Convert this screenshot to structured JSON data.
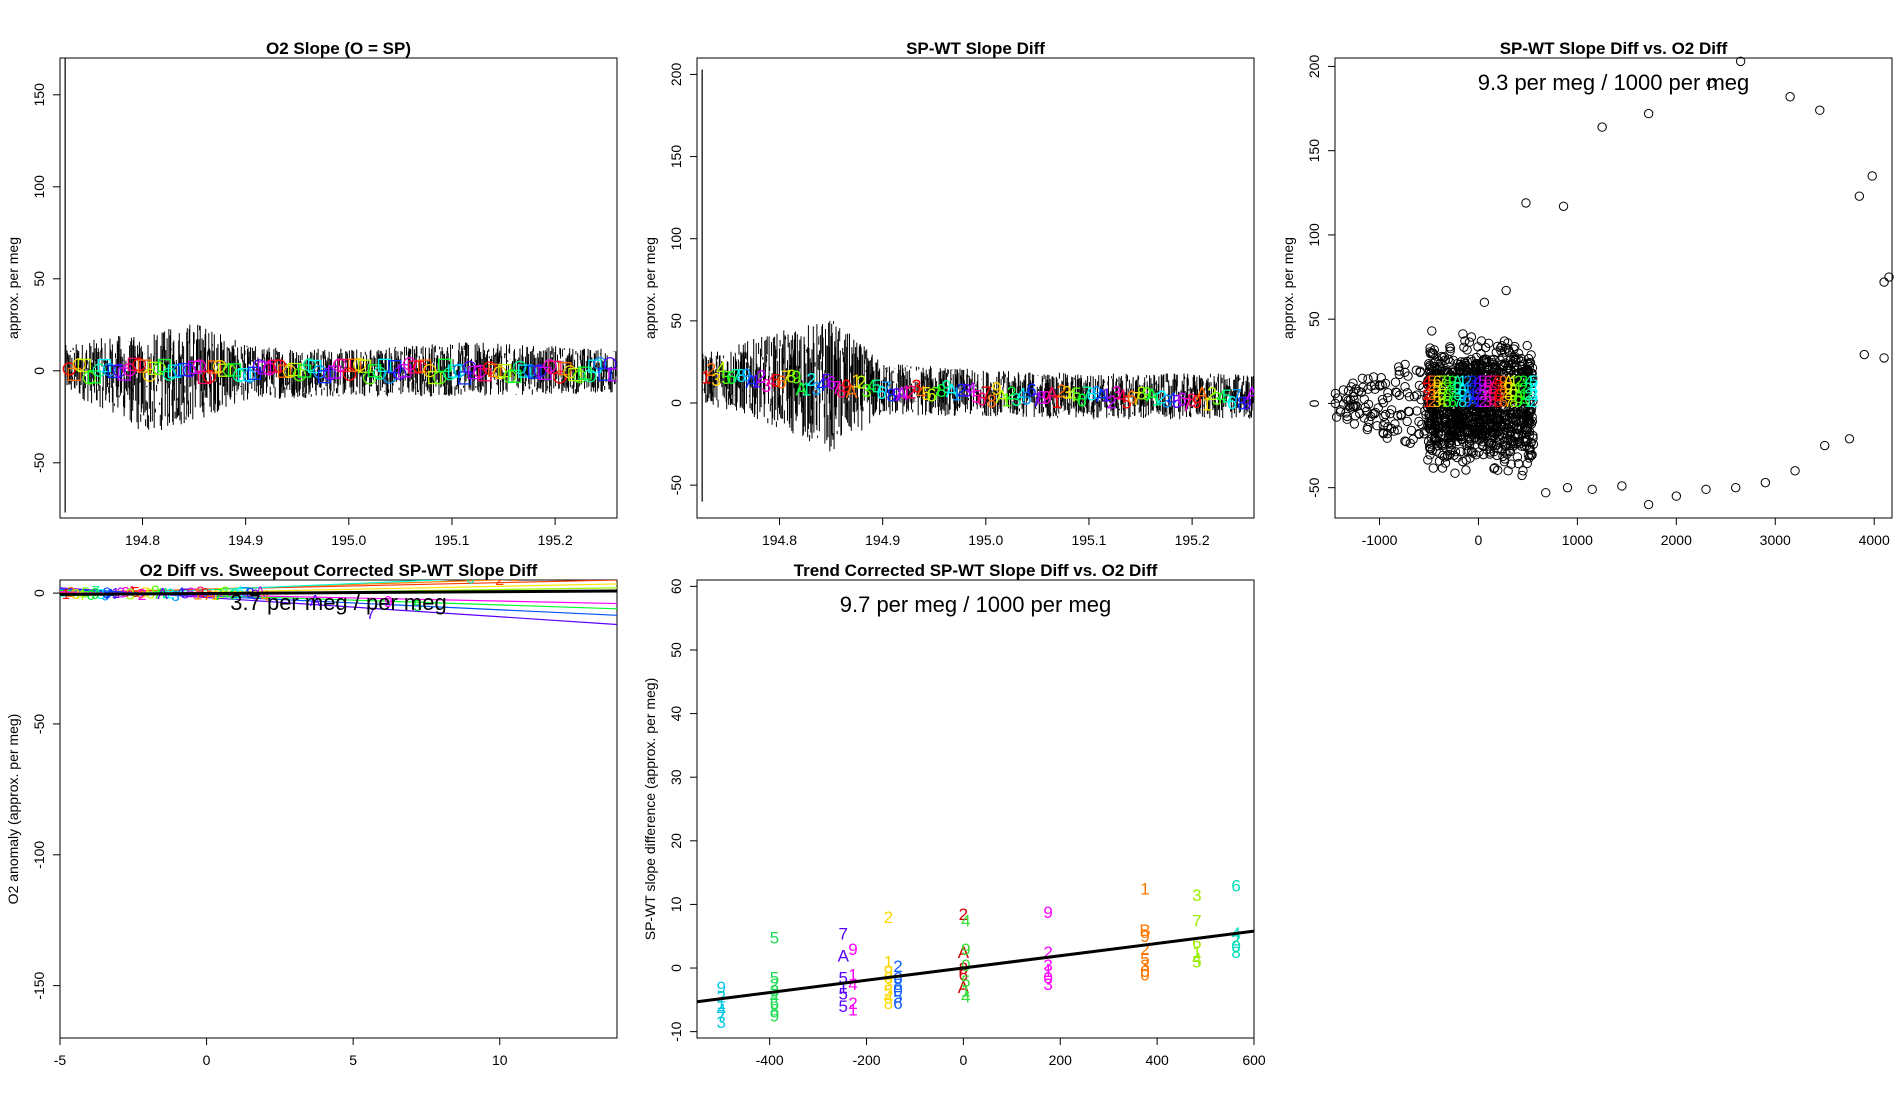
{
  "chart_data": [
    {
      "type": "line",
      "title": "O2 Slope (O = SP)",
      "ylabel": "approx. per meg",
      "xlabel": "",
      "xlim": [
        194.72,
        195.26
      ],
      "ylim": [
        -80,
        170
      ],
      "xticks": [
        194.8,
        194.9,
        195.0,
        195.1,
        195.2
      ],
      "xtick_labels": [
        "194.8",
        "194.9",
        "195.0",
        "195.1",
        "195.2"
      ],
      "yticks": [
        -50,
        0,
        50,
        100,
        150
      ],
      "ytick_labels": [
        "-50",
        "0",
        "50",
        "100",
        "150"
      ],
      "spike": {
        "x": 194.725,
        "ymin": -77,
        "ymax": 172
      },
      "noise_envelope": [
        {
          "x": 194.725,
          "lo": -12,
          "hi": 14
        },
        {
          "x": 194.78,
          "lo": -25,
          "hi": 20
        },
        {
          "x": 194.8,
          "lo": -35,
          "hi": 18
        },
        {
          "x": 194.85,
          "lo": -28,
          "hi": 28
        },
        {
          "x": 194.9,
          "lo": -16,
          "hi": 14
        },
        {
          "x": 195.0,
          "lo": -14,
          "hi": 12
        },
        {
          "x": 195.1,
          "lo": -14,
          "hi": 16
        },
        {
          "x": 195.26,
          "lo": -12,
          "hi": 12
        }
      ],
      "markers": "colored circles (O) and squares (SP) along y = 0"
    },
    {
      "type": "line",
      "title": "SP-WT Slope Diff",
      "ylabel": "approx. per meg",
      "xlabel": "",
      "xlim": [
        194.72,
        195.26
      ],
      "ylim": [
        -70,
        210
      ],
      "xticks": [
        194.8,
        194.9,
        195.0,
        195.1,
        195.2
      ],
      "xtick_labels": [
        "194.8",
        "194.9",
        "195.0",
        "195.1",
        "195.2"
      ],
      "yticks": [
        -50,
        0,
        50,
        100,
        150,
        200
      ],
      "ytick_labels": [
        "-50",
        "0",
        "50",
        "100",
        "150",
        "200"
      ],
      "spike": {
        "x": 194.725,
        "ymin": -60,
        "ymax": 203
      },
      "noise_envelope": [
        {
          "x": 194.725,
          "lo": 0,
          "hi": 30
        },
        {
          "x": 194.78,
          "lo": -10,
          "hi": 40
        },
        {
          "x": 194.85,
          "lo": -30,
          "hi": 52
        },
        {
          "x": 194.9,
          "lo": -8,
          "hi": 25
        },
        {
          "x": 195.0,
          "lo": -8,
          "hi": 20
        },
        {
          "x": 195.1,
          "lo": -10,
          "hi": 18
        },
        {
          "x": 195.26,
          "lo": -10,
          "hi": 18
        }
      ],
      "trend": [
        {
          "x": 194.725,
          "y": 18
        },
        {
          "x": 194.85,
          "y": 10
        },
        {
          "x": 195.0,
          "y": 5
        },
        {
          "x": 195.26,
          "y": 2
        }
      ],
      "marker_labels": [
        "1",
        "2",
        "3",
        "4",
        "5",
        "6",
        "7",
        "8",
        "9",
        "A"
      ]
    },
    {
      "type": "scatter",
      "title": "SP-WT Slope Diff vs. O2 Diff",
      "ylabel": "approx. per meg",
      "xlabel": "",
      "annotation": "9.3 per meg / 1000 per meg",
      "xlim": [
        -1450,
        4180
      ],
      "ylim": [
        -68,
        205
      ],
      "xticks": [
        -1000,
        0,
        1000,
        2000,
        3000,
        4000
      ],
      "xtick_labels": [
        "-1000",
        "0",
        "1000",
        "2000",
        "3000",
        "4000"
      ],
      "yticks": [
        -50,
        0,
        50,
        100,
        150,
        200
      ],
      "ytick_labels": [
        "-50",
        "0",
        "50",
        "100",
        "150",
        "200"
      ],
      "outliers": [
        [
          680,
          -53
        ],
        [
          900,
          -50
        ],
        [
          1150,
          -51
        ],
        [
          1450,
          -49
        ],
        [
          1720,
          -60
        ],
        [
          2000,
          -55
        ],
        [
          2300,
          -51
        ],
        [
          2600,
          -50
        ],
        [
          2900,
          -47
        ],
        [
          3200,
          -40
        ],
        [
          3500,
          -25
        ],
        [
          3750,
          -21
        ],
        [
          3900,
          29
        ],
        [
          4100,
          27
        ],
        [
          4100,
          72
        ],
        [
          4150,
          75
        ],
        [
          3980,
          135
        ],
        [
          3850,
          123
        ],
        [
          3450,
          174
        ],
        [
          3150,
          182
        ],
        [
          2650,
          203
        ],
        [
          2350,
          190
        ],
        [
          1720,
          172
        ],
        [
          1250,
          164
        ],
        [
          480,
          119
        ],
        [
          860,
          117
        ],
        [
          60,
          60
        ],
        [
          280,
          67
        ],
        [
          300,
          -40
        ],
        [
          450,
          -40
        ]
      ],
      "core_x_range": [
        -520,
        560
      ],
      "left_tail_x_range": [
        -1450,
        -520
      ],
      "label_positions": [
        [
          -500,
          5,
          "1"
        ],
        [
          -390,
          5,
          "5"
        ],
        [
          -250,
          5,
          "7"
        ],
        [
          -150,
          5,
          "2"
        ],
        [
          0,
          8,
          "9"
        ],
        [
          170,
          8,
          "3"
        ],
        [
          370,
          10,
          "2"
        ],
        [
          480,
          6,
          "4"
        ],
        [
          560,
          8,
          "7"
        ],
        [
          440,
          12,
          "2"
        ]
      ]
    },
    {
      "type": "line",
      "title": "O2 Diff vs. Sweepout Corrected SP-WT Slope Diff",
      "ylabel": "O2 anomaly (approx. per meg)",
      "xlabel": "",
      "annotation": "3.7 per meg / per meg",
      "xlim": [
        -5,
        14
      ],
      "ylim": [
        -170,
        5
      ],
      "xticks": [
        -5,
        0,
        5,
        10
      ],
      "xtick_labels": [
        "-5",
        "0",
        "5",
        "10"
      ],
      "yticks": [
        -150,
        -100,
        -50,
        0
      ],
      "ytick_labels": [
        "-150",
        "-100",
        "-50",
        "0"
      ],
      "fit_line": {
        "x": [
          -5,
          14
        ],
        "y": [
          -0.5,
          0.8
        ]
      },
      "series": [
        {
          "name": "1",
          "color": "#ff7f00",
          "x": [
            -5,
            14
          ],
          "y": [
            -0.3,
            6.5
          ]
        },
        {
          "name": "2",
          "color": "#ff3b00",
          "x": [
            -5,
            14
          ],
          "y": [
            0.2,
            5.0
          ]
        },
        {
          "name": "3",
          "color": "#ffe600",
          "x": [
            -5,
            14
          ],
          "y": [
            -0.8,
            3.5
          ]
        },
        {
          "name": "4",
          "color": "#9aff00",
          "x": [
            -5,
            14
          ],
          "y": [
            -1.0,
            2.0
          ]
        },
        {
          "name": "5",
          "color": "#00ff2b",
          "x": [
            -5,
            14
          ],
          "y": [
            1.0,
            -6.0
          ]
        },
        {
          "name": "6",
          "color": "#00ffd4",
          "x": [
            -5,
            14
          ],
          "y": [
            -1.2,
            8.0
          ]
        },
        {
          "name": "7",
          "color": "#5a00ff",
          "x": [
            -5,
            14
          ],
          "y": [
            2.0,
            -12.0
          ]
        },
        {
          "name": "8",
          "color": "#0050ff",
          "x": [
            -5,
            14
          ],
          "y": [
            1.5,
            -8.5
          ]
        },
        {
          "name": "9",
          "color": "#ff00ff",
          "x": [
            -5,
            14
          ],
          "y": [
            0.5,
            -4.0
          ]
        },
        {
          "name": "A",
          "color": "#ff0080",
          "x": [
            -5,
            14
          ],
          "y": [
            -0.2,
            1.0
          ]
        }
      ],
      "point_labels": [
        {
          "t": "1",
          "x": 10.5,
          "y": 6.5,
          "c": "#ff7f00"
        },
        {
          "t": "2",
          "x": 10.0,
          "y": 5.0,
          "c": "#ff3b00"
        },
        {
          "t": "6",
          "x": 9.0,
          "y": 5.5,
          "c": "#00e6c0"
        },
        {
          "t": "9",
          "x": 6.2,
          "y": -3.5,
          "c": "#ff00ff"
        },
        {
          "t": "5",
          "x": 7.2,
          "y": -5.0,
          "c": "#00e62b"
        },
        {
          "t": "7",
          "x": 5.6,
          "y": -8.0,
          "c": "#5a00ff"
        },
        {
          "t": "A",
          "x": 3.7,
          "y": -3.0,
          "c": "#5a00ff"
        },
        {
          "t": "1",
          "x": -0.3,
          "y": -0.6,
          "c": "#ff7f00"
        },
        {
          "t": "A",
          "x": -1.5,
          "y": -0.4,
          "c": "#5a00ff"
        },
        {
          "t": "3",
          "x": -2.6,
          "y": -0.5,
          "c": "#9aff00"
        },
        {
          "t": "2",
          "x": -2.2,
          "y": -0.8,
          "c": "#ff00ff"
        },
        {
          "t": "8",
          "x": -3.4,
          "y": -0.2,
          "c": "#0050ff"
        },
        {
          "t": "9",
          "x": -3.8,
          "y": -0.4,
          "c": "#00e62b"
        },
        {
          "t": "4",
          "x": 2.0,
          "y": -1.4,
          "c": "#ff7f00"
        },
        {
          "t": "7",
          "x": 0.4,
          "y": -0.8,
          "c": "#00e62b"
        }
      ]
    },
    {
      "type": "scatter",
      "title": "Trend Corrected SP-WT Slope Diff vs. O2 Diff",
      "ylabel": "SP-WT slope difference (approx. per meg)",
      "xlabel": "",
      "annotation": "9.7 per meg / 1000 per meg",
      "xlim": [
        -550,
        600
      ],
      "ylim": [
        -11,
        61
      ],
      "xticks": [
        -400,
        -200,
        0,
        200,
        400,
        600
      ],
      "xtick_labels": [
        "-400",
        "-200",
        "0",
        "200",
        "400",
        "600"
      ],
      "yticks": [
        -10,
        0,
        10,
        20,
        30,
        40,
        50,
        60
      ],
      "ytick_labels": [
        "-10",
        "0",
        "10",
        "20",
        "30",
        "40",
        "50",
        "60"
      ],
      "fit_line": {
        "x": [
          -550,
          600
        ],
        "y": [
          -5.3,
          5.8
        ]
      },
      "columns": [
        {
          "x": -500,
          "c": "#00c8e6",
          "ys": [
            -3,
            -4.5,
            -5.5,
            -6.5,
            -7.5,
            -8.5
          ],
          "labels": [
            "9",
            "2",
            "1",
            "4",
            "7",
            "3"
          ]
        },
        {
          "x": -390,
          "c": "#22dd55",
          "ys": [
            4.8,
            -1.5,
            -2.5,
            -3.5,
            -4.5,
            -5.5,
            -6.5,
            -7.5
          ],
          "labels": [
            "5",
            "5",
            "2",
            "3",
            "4",
            "6",
            "8",
            "9"
          ]
        },
        {
          "x": -248,
          "c": "#5a00ff",
          "ys": [
            5.4,
            2.0,
            -1.5,
            -3.0,
            -4.0,
            -6.0
          ],
          "labels": [
            "7",
            "A",
            "5",
            "1",
            "5",
            "5"
          ]
        },
        {
          "x": -228,
          "c": "#ff00ff",
          "ys": [
            3.0,
            -1.0,
            -2.5,
            -5.5,
            -6.5
          ],
          "labels": [
            "9",
            "1",
            "4",
            "2",
            "1"
          ]
        },
        {
          "x": -155,
          "c": "#ffd700",
          "ys": [
            8.0,
            1.0,
            -0.5,
            -1.5,
            -2.5,
            -3.5,
            -4.5,
            -5.5
          ],
          "labels": [
            "2",
            "1",
            "9",
            "0",
            "3",
            "5",
            "4",
            "8"
          ]
        },
        {
          "x": -135,
          "c": "#1060ff",
          "ys": [
            0.3,
            -1.5,
            -2.5,
            -3.5,
            -4.5,
            -5.5
          ],
          "labels": [
            "2",
            "6",
            "8",
            "0",
            "5",
            "6"
          ]
        },
        {
          "x": 0,
          "c": "#cc0000",
          "ys": [
            8.5,
            2.5,
            0.0,
            -1.0,
            -3.0
          ],
          "labels": [
            "2",
            "A",
            "8",
            "6",
            "A"
          ]
        },
        {
          "x": 5,
          "c": "#33dd33",
          "ys": [
            7.5,
            3.0,
            0.5,
            -2.0,
            -3.5,
            -4.5
          ],
          "labels": [
            "4",
            "9",
            "0",
            "5",
            "1",
            "4"
          ]
        },
        {
          "x": 175,
          "c": "#ff00ff",
          "ys": [
            8.8,
            2.5,
            0.5,
            -0.5,
            -1.5,
            -2.5
          ],
          "labels": [
            "9",
            "2",
            "3",
            "1",
            "0",
            "3"
          ]
        },
        {
          "x": 375,
          "c": "#ff7700",
          "ys": [
            12.5,
            6.0,
            5.0,
            3.0,
            1.5,
            0.5,
            -0.5,
            -1.0
          ],
          "labels": [
            "1",
            "B",
            "9",
            "2",
            "5",
            "3",
            "0",
            "0"
          ]
        },
        {
          "x": 482,
          "c": "#99ee00",
          "ys": [
            11.5,
            7.5,
            4.0,
            2.5,
            1.5,
            1.0
          ],
          "labels": [
            "3",
            "7",
            "6",
            "1",
            "4",
            "5"
          ]
        },
        {
          "x": 563,
          "c": "#00ddbb",
          "ys": [
            13.0,
            5.5,
            4.5,
            3.5,
            2.5
          ],
          "labels": [
            "6",
            "4",
            "2",
            "0",
            "8"
          ]
        }
      ]
    }
  ]
}
